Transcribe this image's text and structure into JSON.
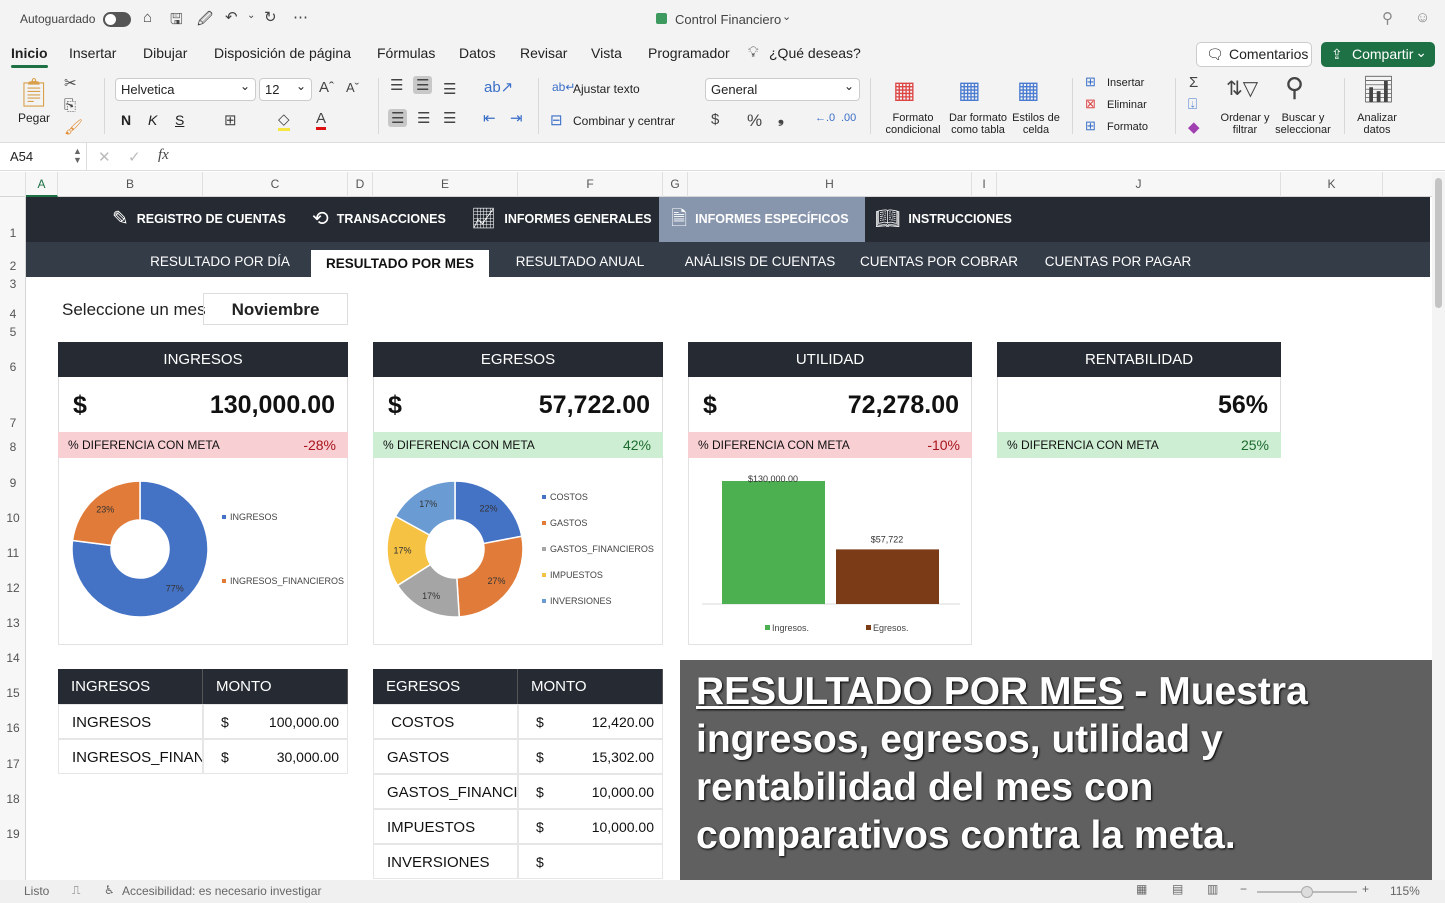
{
  "titlebar": {
    "autosave_label": "Autoguardado",
    "doc_title": "Control Financiero"
  },
  "menu": {
    "tabs": [
      "Inicio",
      "Insertar",
      "Dibujar",
      "Disposición de página",
      "Fórmulas",
      "Datos",
      "Revisar",
      "Vista",
      "Programador"
    ],
    "tell_me": "¿Qué deseas?",
    "comments": "Comentarios",
    "share": "Compartir"
  },
  "ribbon": {
    "paste": "Pegar",
    "font": "Helvetica",
    "font_size": "12",
    "bold": "N",
    "italic": "K",
    "underline": "S",
    "wrap_text": "Ajustar texto",
    "merge_center": "Combinar y centrar",
    "number_format": "General",
    "cond_format": "Formato condicional",
    "format_table": "Dar formato como tabla",
    "cell_styles": "Estilos de celda",
    "insert": "Insertar",
    "delete": "Eliminar",
    "format": "Formato",
    "sort_filter": "Ordenar y filtrar",
    "find_select": "Buscar y seleccionar",
    "analyze": "Analizar datos"
  },
  "formula_bar": {
    "cell_ref": "A54",
    "value": ""
  },
  "columns": [
    "A",
    "B",
    "C",
    "D",
    "E",
    "F",
    "G",
    "H",
    "I",
    "J",
    "K"
  ],
  "rows": [
    "1",
    "2",
    "3",
    "4",
    "5",
    "6",
    "7",
    "8",
    "9",
    "10",
    "11",
    "12",
    "13",
    "14",
    "15",
    "16",
    "17",
    "18",
    "19"
  ],
  "nav": {
    "items": [
      "REGISTRO DE CUENTAS",
      "TRANSACCIONES",
      "INFORMES GENERALES",
      "INFORMES ESPECÍFICOS",
      "INSTRUCCIONES"
    ],
    "active": 3,
    "sub_items": [
      "RESULTADO POR DÍA",
      "RESULTADO POR MES",
      "RESULTADO ANUAL",
      "ANÁLISIS DE CUENTAS",
      "CUENTAS POR COBRAR",
      "CUENTAS POR PAGAR"
    ],
    "sub_active": 1
  },
  "month_selector": {
    "label": "Seleccione un mes",
    "value": "Noviembre"
  },
  "cards": [
    {
      "title": "INGRESOS",
      "currency": "$",
      "value": "130,000.00",
      "diff_label": "% DIFERENCIA CON META",
      "diff": "-28%",
      "diff_status": "negative"
    },
    {
      "title": "EGRESOS",
      "currency": "$",
      "value": "57,722.00",
      "diff_label": "% DIFERENCIA CON META",
      "diff": "42%",
      "diff_status": "positive"
    },
    {
      "title": "UTILIDAD",
      "currency": "$",
      "value": "72,278.00",
      "diff_label": "% DIFERENCIA CON META",
      "diff": "-10%",
      "diff_status": "negative"
    },
    {
      "title": "RENTABILIDAD",
      "currency": "",
      "value": "56%",
      "diff_label": "% DIFERENCIA CON META",
      "diff": "25%",
      "diff_status": "positive"
    }
  ],
  "colors": {
    "negative_bg": "#f8d0d4",
    "negative_text": "#a8141b",
    "positive_bg": "#cdeed3",
    "positive_text": "#1e6b2e",
    "dark": "#262b33",
    "accent_green": "#1e7145"
  },
  "chart_data": [
    {
      "type": "pie",
      "donut": true,
      "categories": [
        "INGRESOS",
        "INGRESOS_FINANCIEROS"
      ],
      "values": [
        77,
        23
      ],
      "labels": [
        "77%",
        "23%"
      ],
      "colors": [
        "#4472c4",
        "#e07b39"
      ],
      "legend": "right"
    },
    {
      "type": "pie",
      "donut": true,
      "categories": [
        "COSTOS",
        "GASTOS",
        "GASTOS_FINANCIEROS",
        "IMPUESTOS",
        "INVERSIONES"
      ],
      "values": [
        22,
        27,
        17,
        17,
        17
      ],
      "labels": [
        "22%",
        "27%",
        "17%",
        "17%",
        "17%"
      ],
      "colors": [
        "#4472c4",
        "#e07b39",
        "#a5a5a5",
        "#f6c243",
        "#6a9bd3"
      ],
      "legend": "right"
    },
    {
      "type": "bar",
      "categories": [
        "Ingresos.",
        "Egresos."
      ],
      "values": [
        130000,
        57722
      ],
      "data_labels": [
        "$130,000.00",
        "$57,722"
      ],
      "colors": [
        "#4caf50",
        "#7b3b17"
      ],
      "legend": "bottom",
      "ylim": [
        0,
        130000
      ]
    }
  ],
  "tables": [
    {
      "headers": [
        "INGRESOS",
        "MONTO"
      ],
      "rows": [
        [
          "INGRESOS",
          "$",
          "100,000.00"
        ],
        [
          "INGRESOS_FINANC",
          "$",
          "30,000.00"
        ]
      ]
    },
    {
      "headers": [
        "EGRESOS",
        "MONTO"
      ],
      "rows": [
        [
          " COSTOS",
          "$",
          "12,420.00"
        ],
        [
          "GASTOS",
          "$",
          "15,302.00"
        ],
        [
          "GASTOS_FINANCI",
          "$",
          "10,000.00"
        ],
        [
          "IMPUESTOS",
          "$",
          "10,000.00"
        ],
        [
          "INVERSIONES",
          "$",
          ""
        ]
      ]
    }
  ],
  "banner": {
    "title": "RESULTADO POR MES",
    "text": " - Muestra ingresos, egresos, utilidad y rentabilidad del mes con comparativos contra la meta."
  },
  "status": {
    "ready": "Listo",
    "accessibility": "Accesibilidad: es necesario investigar",
    "zoom": "115%"
  }
}
